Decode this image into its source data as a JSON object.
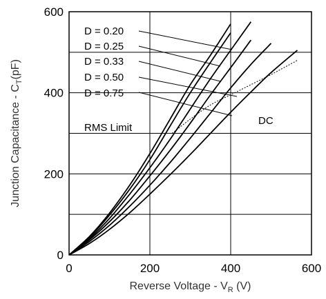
{
  "chart_data": {
    "type": "line",
    "xlabel_main": "Reverse Voltage - V",
    "xlabel_sub": "R",
    "xlabel_unit": " (V)",
    "ylabel_main": "Junction Capacitance - C",
    "ylabel_sub": "T",
    "ylabel_unit": "(pF)",
    "xlim": [
      0,
      600
    ],
    "ylim": [
      0,
      600
    ],
    "x_ticks": [
      0,
      200,
      400,
      600
    ],
    "y_ticks": [
      0,
      200,
      400,
      600
    ],
    "x_tick_labels": [
      "0",
      "200",
      "400",
      "600"
    ],
    "y_tick_labels": [
      "0",
      "200",
      "400",
      "600"
    ],
    "grid": true,
    "x_grid": [
      200,
      400
    ],
    "y_grid": [
      100,
      200,
      300,
      400,
      500
    ],
    "series": [
      {
        "name": "D = 0.20",
        "x": [
          0,
          50,
          100,
          150,
          200,
          250,
          300,
          350,
          400
        ],
        "y": [
          0,
          45,
          103,
          172,
          250,
          335,
          420,
          493,
          570
        ]
      },
      {
        "name": "D = 0.25",
        "x": [
          0,
          50,
          100,
          150,
          200,
          250,
          300,
          350,
          400
        ],
        "y": [
          0,
          43,
          98,
          162,
          235,
          318,
          400,
          475,
          548
        ]
      },
      {
        "name": "D = 0.33",
        "x": [
          0,
          50,
          100,
          150,
          200,
          250,
          300,
          350,
          400,
          450
        ],
        "y": [
          0,
          40,
          90,
          150,
          215,
          285,
          360,
          435,
          505,
          575
        ]
      },
      {
        "name": "D = 0.50",
        "x": [
          0,
          50,
          100,
          150,
          200,
          250,
          300,
          350,
          400,
          450
        ],
        "y": [
          0,
          37,
          82,
          135,
          195,
          258,
          325,
          395,
          462,
          530
        ]
      },
      {
        "name": "D = 0.75",
        "x": [
          0,
          50,
          100,
          150,
          200,
          250,
          300,
          350,
          400,
          450,
          500
        ],
        "y": [
          0,
          33,
          73,
          120,
          172,
          228,
          288,
          350,
          412,
          470,
          522
        ]
      },
      {
        "name": "DC",
        "x": [
          0,
          50,
          100,
          150,
          200,
          250,
          300,
          350,
          400,
          450,
          500,
          565
        ],
        "y": [
          0,
          28,
          63,
          104,
          150,
          198,
          248,
          300,
          352,
          402,
          450,
          505
        ]
      },
      {
        "name": "RMS Limit",
        "x": [
          255,
          300,
          350,
          400,
          450,
          500,
          565
        ],
        "y": [
          300,
          335,
          370,
          395,
          420,
          445,
          480
        ],
        "style": "dashed"
      }
    ],
    "labels": {
      "d020": "D = 0.20",
      "d025": "D = 0.25",
      "d033": "D = 0.33",
      "d050": "D = 0.50",
      "d075": "D = 0.75",
      "rms": "RMS Limit",
      "dc": "DC"
    }
  }
}
